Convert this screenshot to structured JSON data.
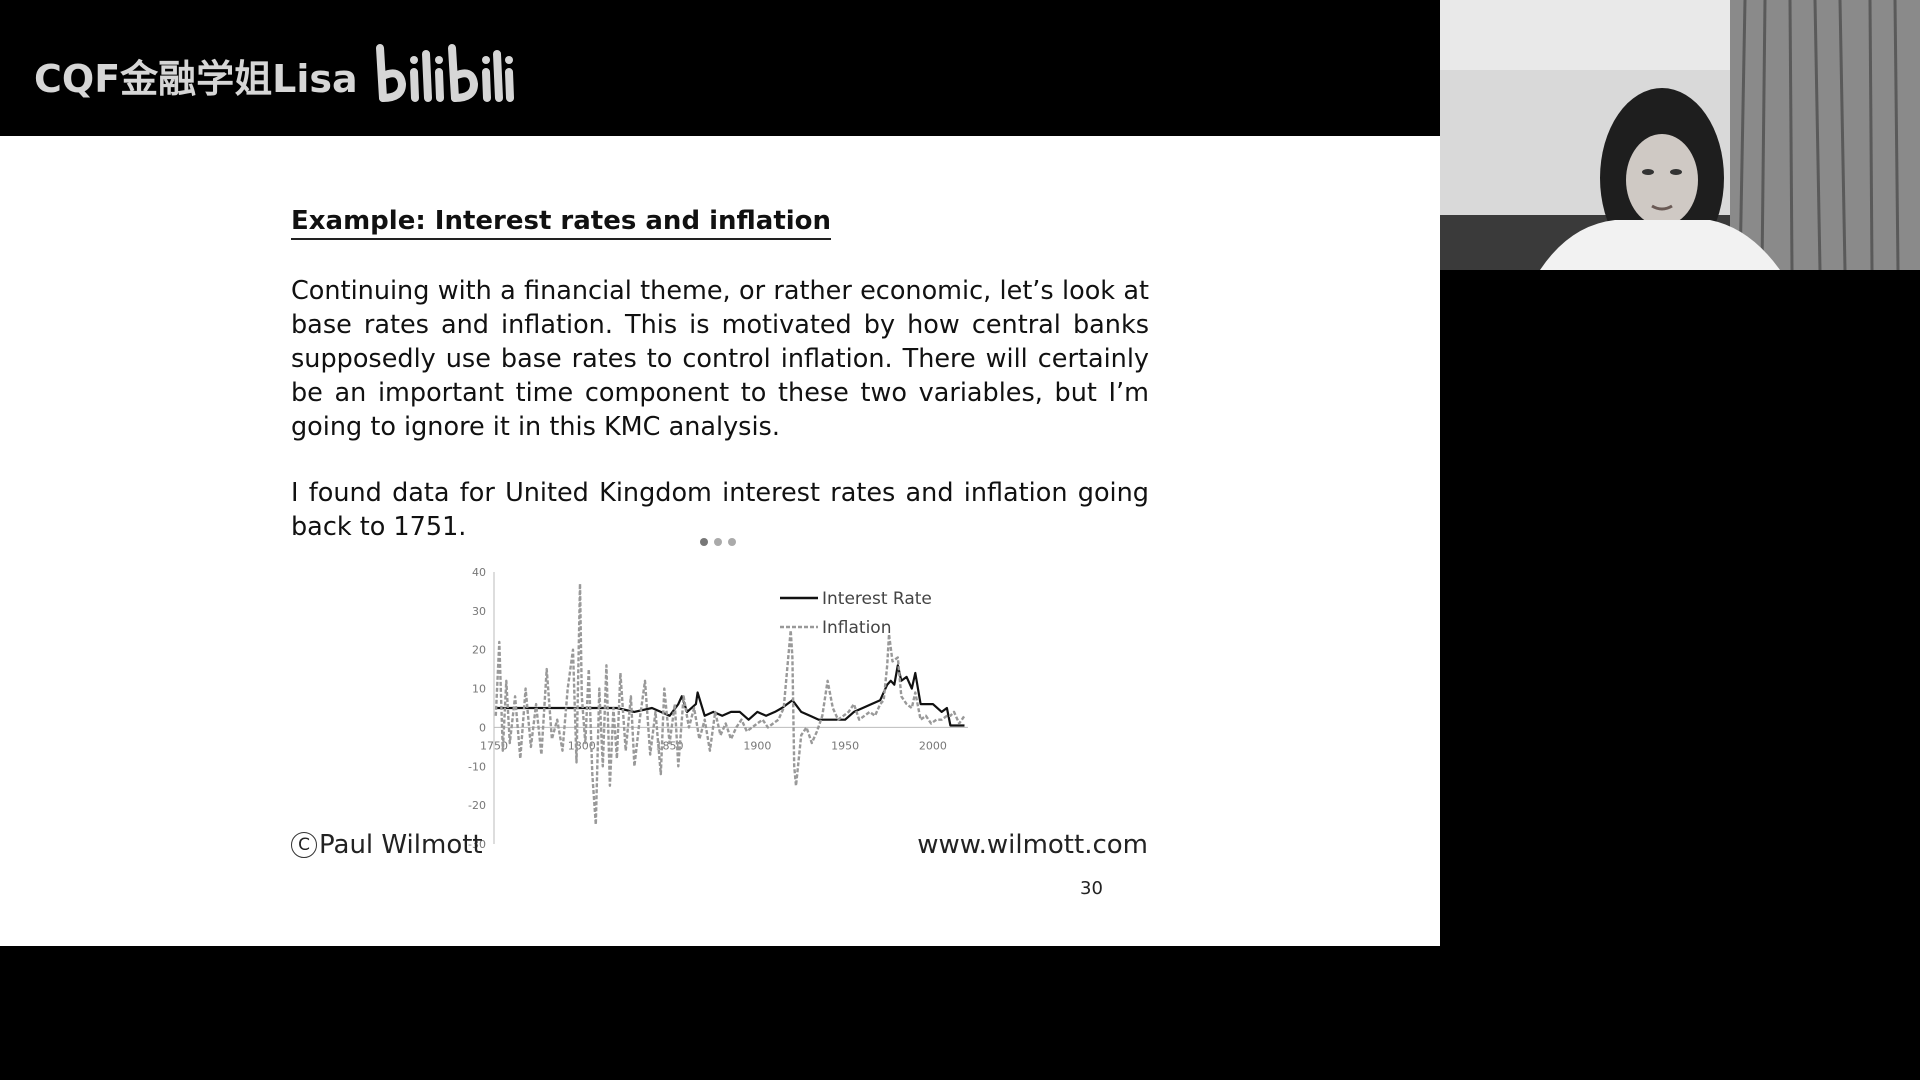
{
  "watermark": {
    "channel_name": "CQF金融学姐Lisa",
    "logo_icon": "bilibili-logo-icon"
  },
  "slide": {
    "title": "Example: Interest rates and inflation",
    "paragraph1": "Continuing with a financial theme, or rather economic, let’s look at base rates and inflation.  This is motivated by how central banks supposedly use base rates to control inflation.  There will certainly be an important time component to these two variables, but I’m going to ignore it in this KMC analysis.",
    "paragraph2": "I found data for United Kingdom interest rates and inflation going back to 1751.",
    "footer_left": "Paul Wilmott",
    "copyright_symbol": "C",
    "footer_right": "www.wilmott.com",
    "page_number": "30"
  },
  "chart_data": {
    "type": "line",
    "title": "",
    "xlabel": "",
    "ylabel": "",
    "xlim": [
      1750,
      2020
    ],
    "ylim": [
      -30,
      40
    ],
    "x_ticks": [
      "1750",
      "1800",
      "1850",
      "1900",
      "1950",
      "2000"
    ],
    "y_ticks": [
      "40",
      "30",
      "20",
      "10",
      "0",
      "-10",
      "-20",
      "-30"
    ],
    "legend_position": "top-right",
    "series": [
      {
        "name": "Interest Rate",
        "style": "solid",
        "color": "#111111",
        "x": [
          1751,
          1760,
          1770,
          1780,
          1790,
          1800,
          1810,
          1820,
          1830,
          1840,
          1845,
          1850,
          1855,
          1857,
          1860,
          1865,
          1866,
          1870,
          1875,
          1880,
          1885,
          1890,
          1895,
          1900,
          1905,
          1910,
          1914,
          1920,
          1925,
          1930,
          1935,
          1940,
          1945,
          1950,
          1955,
          1960,
          1965,
          1970,
          1974,
          1976,
          1978,
          1980,
          1982,
          1985,
          1988,
          1990,
          1993,
          1995,
          2000,
          2005,
          2008,
          2010,
          2015,
          2018
        ],
        "y": [
          5,
          5,
          5,
          5,
          5,
          5,
          5,
          5,
          4,
          5,
          4,
          3,
          6,
          8,
          4,
          6,
          9,
          3,
          4,
          3,
          4,
          4,
          2,
          4,
          3,
          4,
          5,
          7,
          4,
          3,
          2,
          2,
          2,
          2,
          4,
          5,
          6,
          7,
          11,
          12,
          11,
          16,
          12,
          13,
          10,
          14,
          6,
          6,
          6,
          4,
          5,
          0.5,
          0.5,
          0.5
        ]
      },
      {
        "name": "Inflation",
        "style": "dashed",
        "color": "#999999",
        "x": [
          1751,
          1753,
          1755,
          1757,
          1759,
          1762,
          1765,
          1768,
          1771,
          1774,
          1777,
          1780,
          1783,
          1786,
          1789,
          1792,
          1795,
          1797,
          1799,
          1800,
          1802,
          1804,
          1806,
          1808,
          1810,
          1812,
          1814,
          1816,
          1818,
          1820,
          1822,
          1825,
          1828,
          1830,
          1833,
          1836,
          1839,
          1842,
          1845,
          1847,
          1850,
          1853,
          1855,
          1858,
          1861,
          1864,
          1867,
          1870,
          1873,
          1876,
          1879,
          1882,
          1885,
          1888,
          1891,
          1894,
          1897,
          1900,
          1903,
          1906,
          1909,
          1912,
          1915,
          1917,
          1919,
          1920,
          1921,
          1922,
          1925,
          1928,
          1931,
          1934,
          1937,
          1940,
          1943,
          1946,
          1949,
          1952,
          1955,
          1958,
          1961,
          1964,
          1967,
          1970,
          1972,
          1974,
          1975,
          1977,
          1980,
          1982,
          1985,
          1988,
          1990,
          1993,
          1996,
          1999,
          2002,
          2005,
          2008,
          2010,
          2012,
          2015,
          2018
        ],
        "y": [
          3,
          22,
          -6,
          12,
          -4,
          8,
          -8,
          10,
          -5,
          6,
          -7,
          15,
          -3,
          2,
          -6,
          10,
          20,
          -9,
          37,
          8,
          -4,
          15,
          -12,
          -25,
          10,
          -10,
          16,
          -15,
          5,
          -8,
          14,
          -6,
          8,
          -10,
          2,
          12,
          -7,
          4,
          -12,
          10,
          -4,
          6,
          -10,
          8,
          0,
          5,
          -3,
          2,
          -6,
          4,
          -2,
          1,
          -3,
          0,
          2,
          -1,
          0,
          1,
          2,
          0,
          1,
          2,
          5,
          15,
          25,
          18,
          -10,
          -15,
          -2,
          0,
          -4,
          -1,
          3,
          12,
          5,
          2,
          3,
          4,
          6,
          2,
          3,
          4,
          3,
          6,
          7,
          16,
          24,
          17,
          18,
          8,
          6,
          5,
          9,
          2,
          3,
          1,
          2,
          2,
          3,
          3,
          4,
          1,
          3
        ]
      }
    ]
  }
}
